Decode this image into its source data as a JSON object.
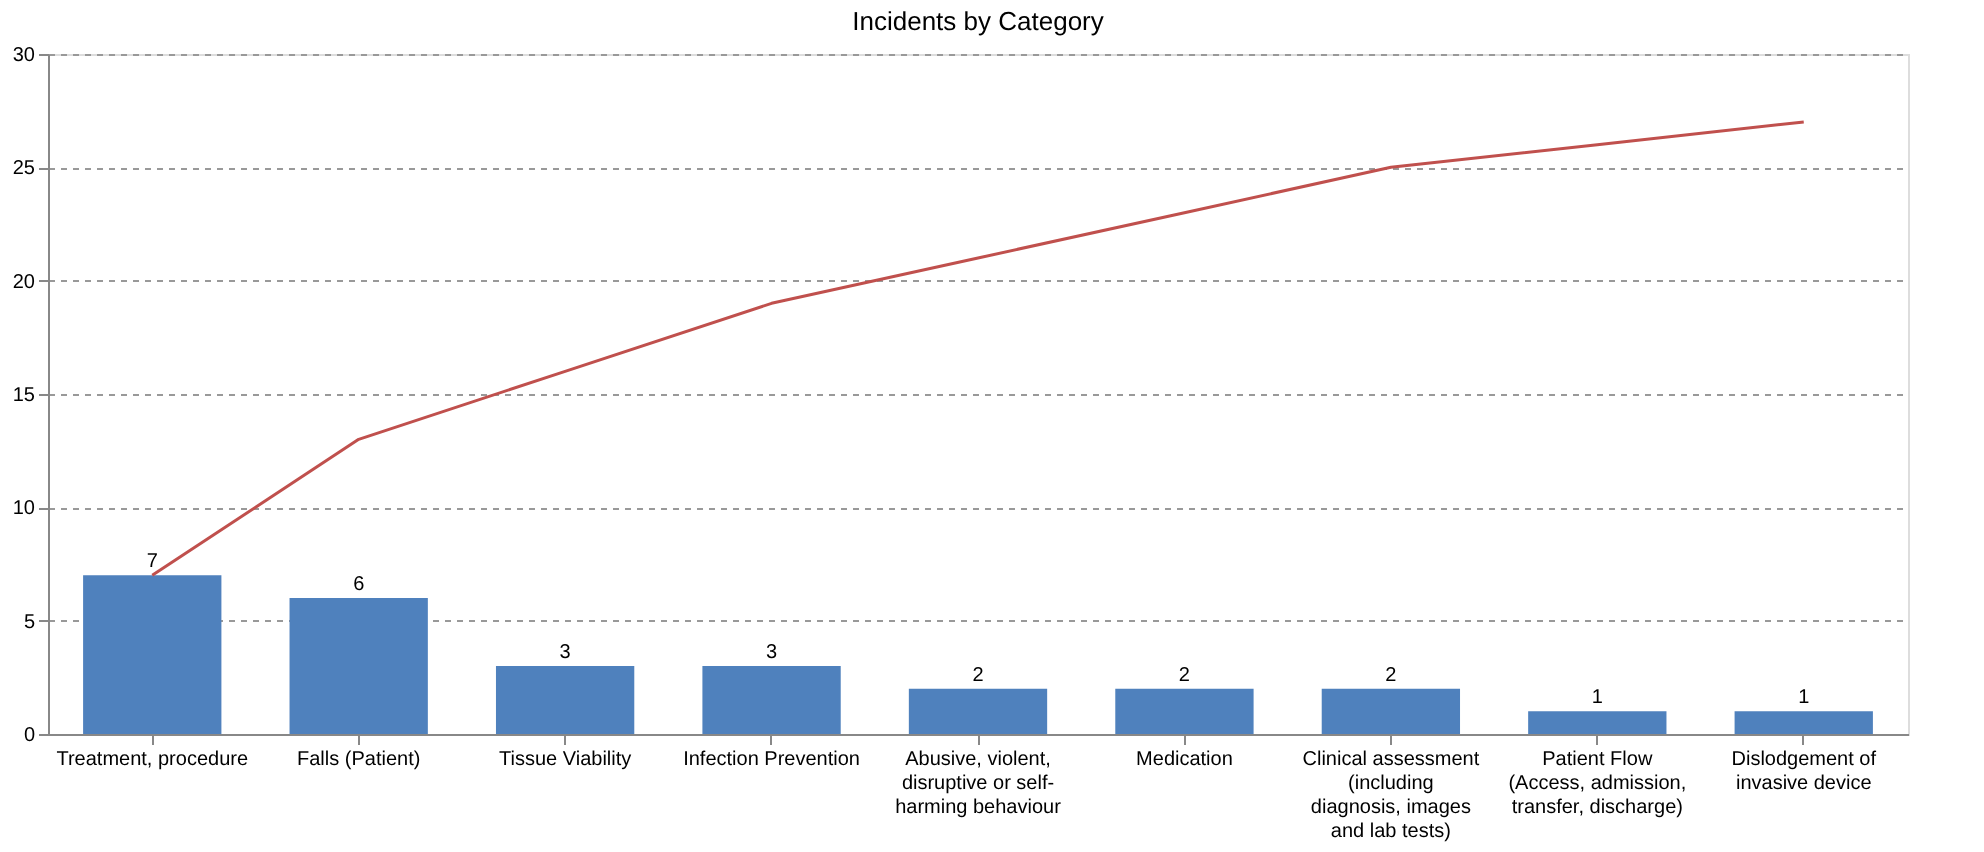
{
  "chart_data": {
    "type": "bar",
    "title": "Incidents by Category",
    "categories": [
      "Treatment, procedure",
      "Falls (Patient)",
      "Tissue Viability",
      "Infection Prevention",
      "Abusive, violent, disruptive or self-harming behaviour",
      "Medication",
      "Clinical assessment (including diagnosis, images and lab tests)",
      "Patient Flow (Access, admission, transfer, discharge)",
      "Dislodgement of invasive device"
    ],
    "series": [
      {
        "color": "#4f81bd",
        "values": [
          7,
          6,
          3,
          3,
          2,
          2,
          2,
          1,
          1
        ],
        "value_labels": [
          "7",
          "6",
          "3",
          "3",
          "2",
          "2",
          "2",
          "1",
          "1"
        ]
      },
      {
        "type": "line",
        "color": "#c0504d",
        "values": [
          7,
          13,
          16,
          19,
          21,
          23,
          25,
          26,
          27
        ]
      }
    ],
    "ylim": [
      0,
      30
    ],
    "yticks": [
      0,
      5,
      10,
      15,
      20,
      25,
      30
    ],
    "grid": "y",
    "marker": "none",
    "line_style": "solid"
  }
}
